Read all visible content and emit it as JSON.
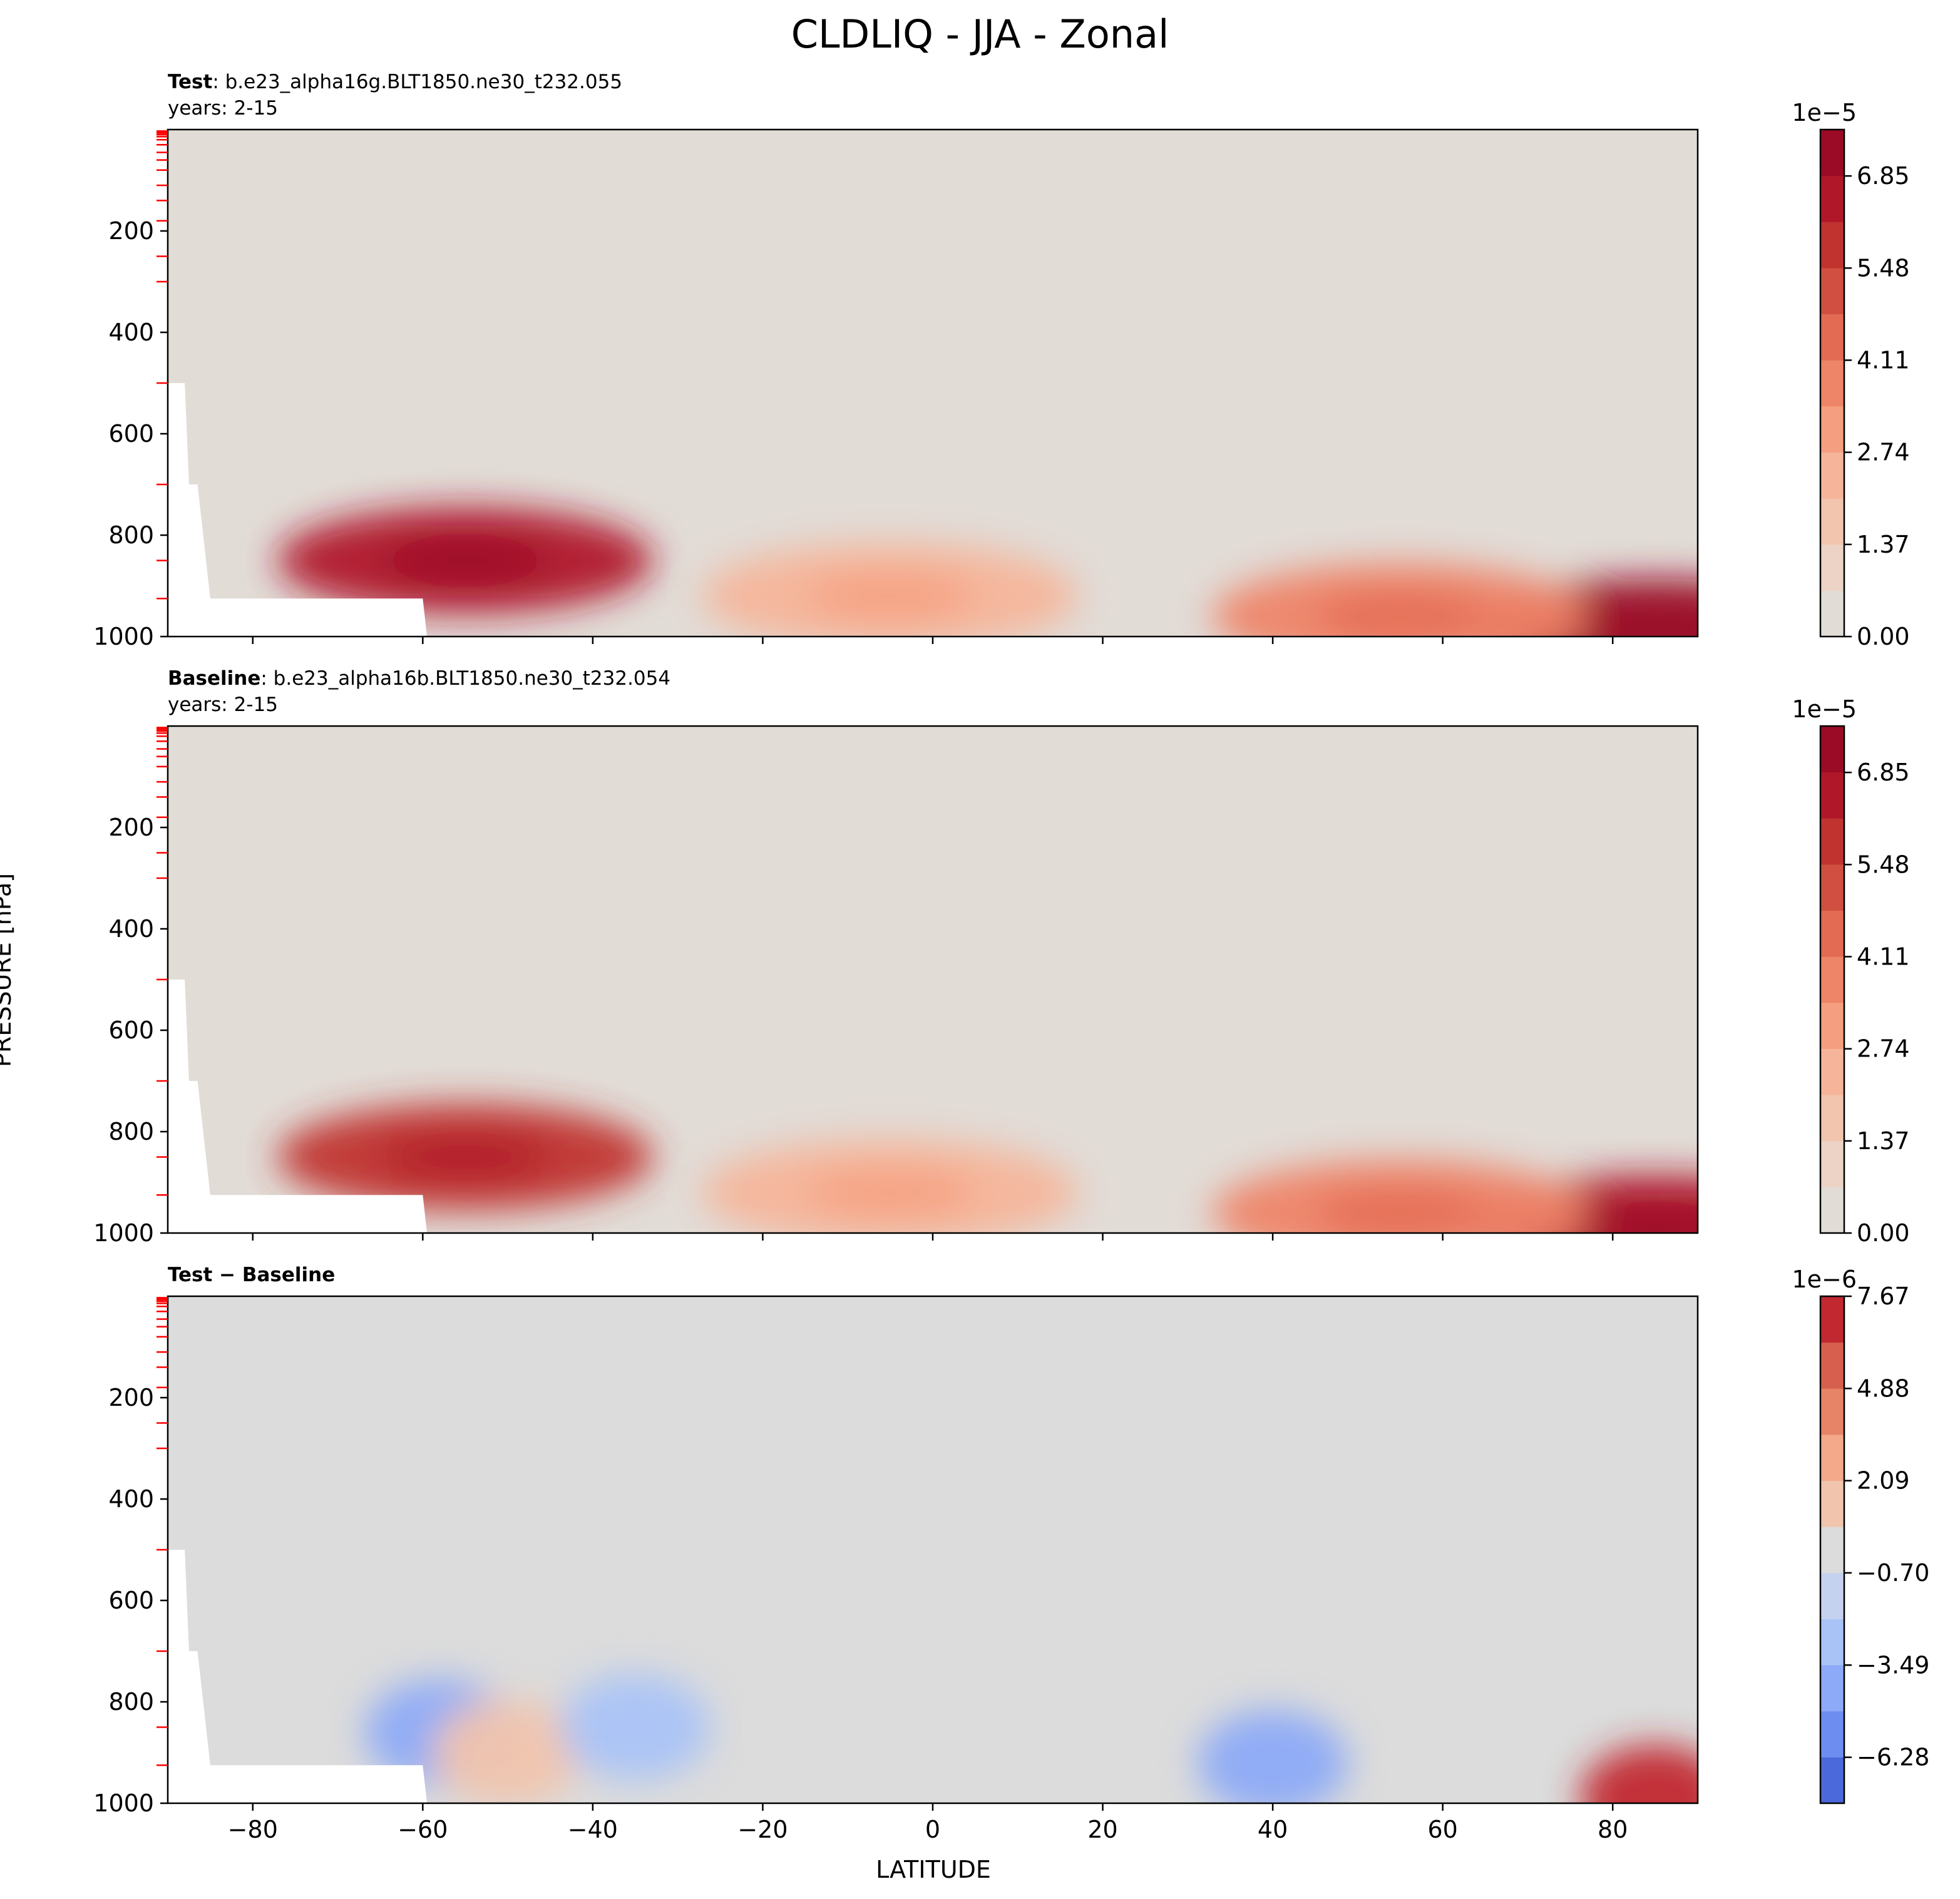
{
  "title": "CLDLIQ - JJA - Zonal",
  "xlabel": "LATITUDE",
  "ylabel": "PRESSURE [hPa]",
  "colors": {
    "background_fill": "#e2dcd7",
    "diff_background": "#dcdcdc",
    "model_level_ticks": "#ff0000",
    "colormap": "coolwarm"
  },
  "chart_data": [
    {
      "type": "heatmap",
      "panel": "Test",
      "label_bold": "Test",
      "label_rest": ": b.e23_alpha16g.BLT1850.ne30_t232.055",
      "years": "years: 2-15",
      "x_ticks": [
        -80,
        -60,
        -40,
        -20,
        0,
        20,
        40,
        60,
        80
      ],
      "y_ticks": [
        200,
        400,
        600,
        800,
        1000
      ],
      "xlim": [
        -90,
        90
      ],
      "ylim": [
        1000,
        0
      ],
      "colorbar": {
        "exponent": "1e−5",
        "ticks": [
          "0.00",
          "1.37",
          "2.74",
          "4.11",
          "5.48",
          "6.85"
        ],
        "min": 0.0,
        "max": 7.54,
        "levels": 11
      },
      "features": [
        {
          "name": "southern mid-latitude cloud liquid maximum",
          "lat": -55,
          "pressure": 850,
          "value": 6.5
        },
        {
          "name": "northern polar low-level maximum",
          "lat": 85,
          "pressure": 990,
          "value": 7.2
        },
        {
          "name": "northern mid-latitude low-level band",
          "lat": 55,
          "pressure": 960,
          "value": 3.8
        },
        {
          "name": "tropical low-level band",
          "lat": -5,
          "pressure": 920,
          "value": 2.6
        }
      ]
    },
    {
      "type": "heatmap",
      "panel": "Baseline",
      "label_bold": "Baseline",
      "label_rest": ": b.e23_alpha16b.BLT1850.ne30_t232.054",
      "years": "years: 2-15",
      "x_ticks": [
        -80,
        -60,
        -40,
        -20,
        0,
        20,
        40,
        60,
        80
      ],
      "y_ticks": [
        200,
        400,
        600,
        800,
        1000
      ],
      "xlim": [
        -90,
        90
      ],
      "ylim": [
        1000,
        0
      ],
      "colorbar": {
        "exponent": "1e−5",
        "ticks": [
          "0.00",
          "1.37",
          "2.74",
          "4.11",
          "5.48",
          "6.85"
        ],
        "min": 0.0,
        "max": 7.54,
        "levels": 11
      },
      "features": [
        {
          "name": "southern mid-latitude cloud liquid maximum",
          "lat": -55,
          "pressure": 850,
          "value": 6.3
        },
        {
          "name": "northern polar low-level maximum",
          "lat": 85,
          "pressure": 990,
          "value": 6.8
        },
        {
          "name": "northern mid-latitude low-level band",
          "lat": 55,
          "pressure": 960,
          "value": 3.8
        },
        {
          "name": "tropical low-level band",
          "lat": -5,
          "pressure": 920,
          "value": 2.6
        }
      ]
    },
    {
      "type": "heatmap",
      "panel": "Test - Baseline",
      "label": "Test − Baseline",
      "x_ticks": [
        -80,
        -60,
        -40,
        -20,
        0,
        20,
        40,
        60,
        80
      ],
      "y_ticks": [
        200,
        400,
        600,
        800,
        1000
      ],
      "xlim": [
        -90,
        90
      ],
      "ylim": [
        1000,
        0
      ],
      "colorbar": {
        "exponent": "1e−6",
        "ticks": [
          "−6.28",
          "−3.49",
          "−0.70",
          "2.09",
          "4.88",
          "7.67"
        ],
        "min": -7.67,
        "max": 7.67,
        "levels": 11
      },
      "features": [
        {
          "name": "negative difference",
          "lat": -58,
          "pressure": 860,
          "value": -3.5
        },
        {
          "name": "positive difference",
          "lat": -50,
          "pressure": 900,
          "value": 1.5
        },
        {
          "name": "negative difference",
          "lat": -35,
          "pressure": 850,
          "value": -2.5
        },
        {
          "name": "negative difference",
          "lat": 40,
          "pressure": 920,
          "value": -4.0
        },
        {
          "name": "positive difference",
          "lat": 85,
          "pressure": 990,
          "value": 7.0
        }
      ]
    }
  ]
}
